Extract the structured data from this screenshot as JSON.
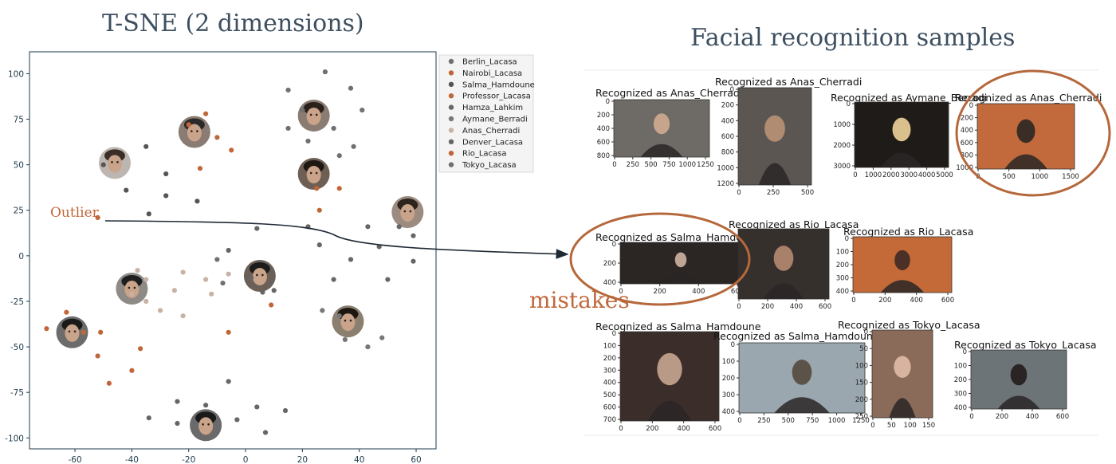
{
  "left_heading": "T-SNE (2 dimensions)",
  "right_heading": "Facial recognition samples",
  "annotations": {
    "outlier": "Outlier",
    "mistakes": "mistakes"
  },
  "colors": {
    "orange": "#c0673a",
    "dark": "#555555",
    "grey": "#777777",
    "light": "#c8b2a4",
    "heading": "#3d4f60"
  },
  "chart_data": {
    "type": "scatter",
    "title": "T-SNE (2 dimensions)",
    "xlim": [
      -76,
      67
    ],
    "ylim": [
      -106,
      112
    ],
    "xticks": [
      -60,
      -40,
      -20,
      0,
      20,
      40,
      60
    ],
    "yticks": [
      100,
      75,
      50,
      25,
      0,
      -25,
      -50,
      -75,
      -100
    ],
    "grid": false,
    "legend_position": "outside-right",
    "series": [
      {
        "name": "Berlin_Lacasa",
        "color": "#707070",
        "points": [
          [
            20,
            80
          ],
          [
            31,
            70
          ],
          [
            33,
            55
          ],
          [
            15,
            70
          ],
          [
            41,
            80
          ],
          [
            38,
            60
          ],
          [
            22,
            63
          ]
        ]
      },
      {
        "name": "Nairobi_Lacasa",
        "color": "#c0673a",
        "points": [
          [
            -20,
            72
          ],
          [
            -14,
            78
          ],
          [
            -5,
            58
          ],
          [
            -10,
            65
          ],
          [
            -16,
            48
          ]
        ]
      },
      {
        "name": "Salma_Hamdoune",
        "color": "#555555",
        "points": [
          [
            -50,
            50
          ],
          [
            -42,
            36
          ],
          [
            -35,
            60
          ],
          [
            -28,
            45
          ],
          [
            -28,
            33
          ],
          [
            -34,
            23
          ],
          [
            -17,
            30
          ]
        ]
      },
      {
        "name": "Professor_Lacasa",
        "color": "#c0673a",
        "points": [
          [
            -63,
            -31
          ],
          [
            -70,
            -40
          ],
          [
            -57,
            -42
          ],
          [
            -51,
            -42
          ],
          [
            -48,
            -70
          ],
          [
            -52,
            -55
          ],
          [
            -37,
            -51
          ],
          [
            -40,
            -63
          ]
        ]
      },
      {
        "name": "Hamza_Lahkim",
        "color": "#666666",
        "points": [
          [
            -6,
            -69
          ],
          [
            -3,
            -90
          ],
          [
            4,
            -83
          ],
          [
            14,
            -85
          ],
          [
            7,
            -97
          ],
          [
            -14,
            -82
          ],
          [
            -24,
            -80
          ],
          [
            -24,
            -92
          ],
          [
            -34,
            -89
          ]
        ]
      },
      {
        "name": "Aymane_Berradi",
        "color": "#777777",
        "points": [
          [
            27,
            -30
          ],
          [
            33,
            -33
          ],
          [
            35,
            -46
          ],
          [
            43,
            -50
          ],
          [
            48,
            -45
          ]
        ]
      },
      {
        "name": "Anas_Cherradi",
        "color": "#c8b2a4",
        "points": [
          [
            -38,
            -8
          ],
          [
            -40,
            -21
          ],
          [
            -35,
            -25
          ],
          [
            -30,
            -30
          ],
          [
            -25,
            -19
          ],
          [
            -22,
            -33
          ],
          [
            -14,
            -13
          ],
          [
            -6,
            -10
          ],
          [
            -12,
            -21
          ],
          [
            -22,
            -9
          ],
          [
            -35,
            -13
          ]
        ]
      },
      {
        "name": "Denver_Lacasa",
        "color": "#666666",
        "points": [
          [
            -6,
            3
          ],
          [
            2,
            -12
          ],
          [
            6,
            -20
          ],
          [
            4,
            15
          ],
          [
            10,
            -19
          ],
          [
            22,
            16
          ],
          [
            26,
            6
          ],
          [
            31,
            -13
          ],
          [
            37,
            -2
          ],
          [
            43,
            16
          ],
          [
            47,
            5
          ],
          [
            50,
            -13
          ],
          [
            59,
            -3
          ],
          [
            59,
            11
          ],
          [
            54,
            16
          ]
        ]
      },
      {
        "name": "Rio_Lacasa",
        "color": "#c0673a",
        "points": [
          [
            -52,
            21
          ],
          [
            25,
            37
          ],
          [
            33,
            37
          ],
          [
            26,
            25
          ],
          [
            -6,
            -42
          ],
          [
            9,
            -27
          ]
        ]
      },
      {
        "name": "Tokyo_Lacasa",
        "color": "#707070",
        "points": [
          [
            28,
            101
          ],
          [
            37,
            92
          ],
          [
            15,
            91
          ],
          [
            -10,
            -2
          ],
          [
            -8,
            -15
          ]
        ]
      }
    ]
  },
  "samples": [
    {
      "title": "Recognized as Anas_Cherradi",
      "yticks": [
        "0",
        "200",
        "400",
        "600",
        "800"
      ],
      "xticks": [
        "0",
        "250",
        "500",
        "750",
        "1000",
        "1250"
      ]
    },
    {
      "title": "Recognized as Anas_Cherradi",
      "yticks": [
        "0",
        "200",
        "400",
        "600",
        "800",
        "1000",
        "1200"
      ],
      "xticks": [
        "0",
        "250",
        "500"
      ]
    },
    {
      "title": "Recognized as Aymane_Berradi",
      "yticks": [
        "0",
        "1000",
        "2000",
        "3000"
      ],
      "xticks": [
        "0",
        "1000",
        "2000",
        "3000",
        "4000",
        "5000"
      ]
    },
    {
      "title": "Recognized as Anas_Cherradi",
      "yticks": [
        "0",
        "200",
        "400",
        "600",
        "800",
        "1000"
      ],
      "xticks": [
        "0",
        "500",
        "1000",
        "1500"
      ]
    },
    {
      "title": "Recognized as Salma_Hamdoune",
      "yticks": [
        "0",
        "200",
        "400"
      ],
      "xticks": [
        "0",
        "200",
        "400",
        "600"
      ]
    },
    {
      "title": "Recognized as Rio_Lacasa",
      "yticks": [],
      "xticks": [
        "0",
        "200",
        "400",
        "600"
      ]
    },
    {
      "title": "Recognized as Rio_Lacasa",
      "yticks": [
        "0",
        "100",
        "200",
        "300",
        "400"
      ],
      "xticks": [
        "0",
        "200",
        "400",
        "600"
      ]
    },
    {
      "title": "Recognized as Salma_Hamdoune",
      "yticks": [
        "0",
        "100",
        "200",
        "300",
        "400",
        "500",
        "600",
        "700"
      ],
      "xticks": [
        "0",
        "200",
        "400",
        "600"
      ]
    },
    {
      "title": "Recognized as Salma_Hamdoune",
      "yticks": [
        "0",
        "100",
        "200",
        "300",
        "400"
      ],
      "xticks": [
        "0",
        "250",
        "500",
        "750",
        "1000",
        "1250"
      ]
    },
    {
      "title": "Recognized as Tokyo_Lacasa",
      "yticks": [
        "0",
        "50",
        "100",
        "150",
        "200",
        "250"
      ],
      "xticks": [
        "0",
        "50",
        "100",
        "150"
      ]
    },
    {
      "title": "Recognized as Tokyo_Lacasa",
      "yticks": [
        "0",
        "100",
        "200",
        "300",
        "400"
      ],
      "xticks": [
        "0",
        "200",
        "400",
        "600"
      ]
    }
  ]
}
